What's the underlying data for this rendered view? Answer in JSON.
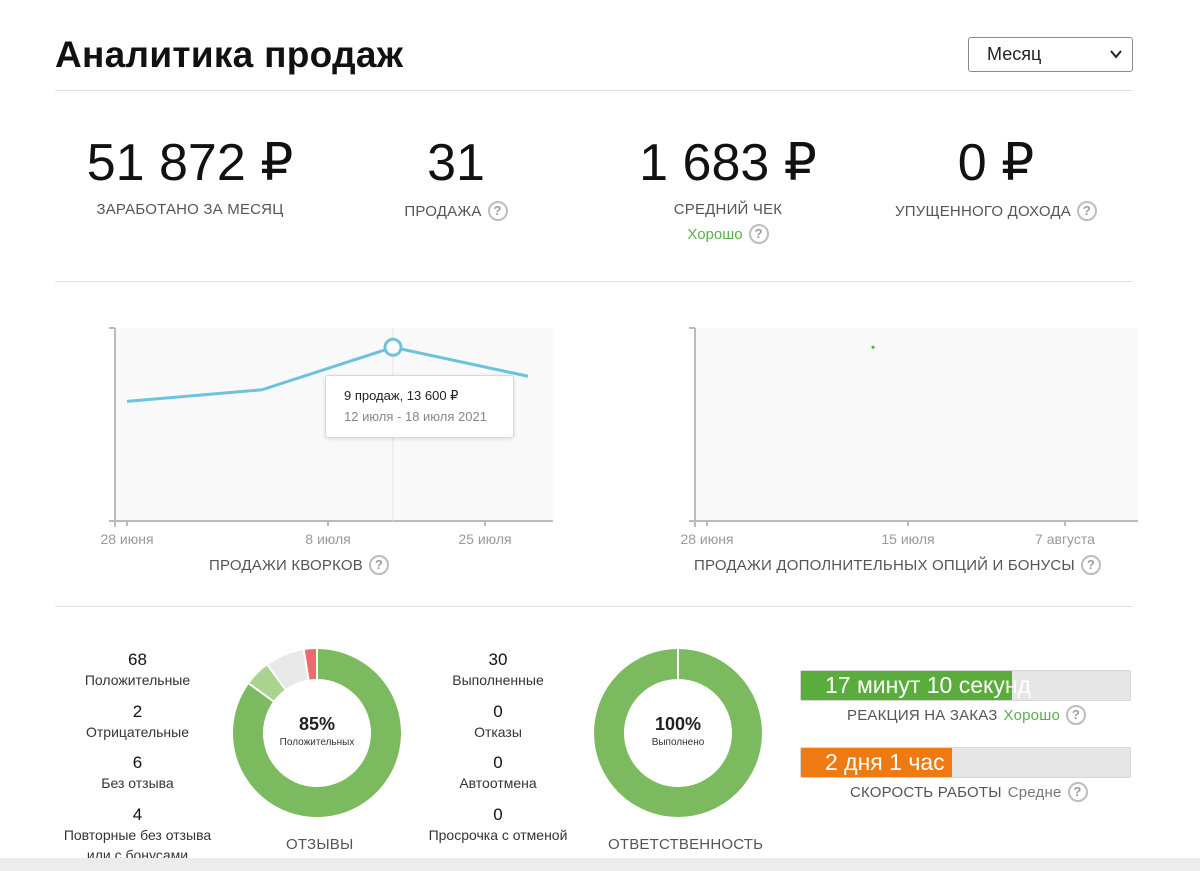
{
  "header": {
    "title": "Аналитика продаж",
    "period_value": "Месяц"
  },
  "stats": [
    {
      "value": "51 872 ₽",
      "label": "ЗАРАБОТАНО ЗА МЕСЯЦ"
    },
    {
      "value": "31",
      "label": "ПРОДАЖА"
    },
    {
      "value": "1 683 ₽",
      "label": "СРЕДНИЙ ЧЕК",
      "sublabel": "Хорошо"
    },
    {
      "value": "0 ₽",
      "label": "УПУЩЕННОГО ДОХОДА"
    }
  ],
  "chart_data": [
    {
      "type": "line",
      "title": "ПРОДАЖИ КВОРКОВ",
      "x_tick_labels": [
        "28 июня",
        "8 июля",
        "25 июля"
      ],
      "series": [
        {
          "color": "#6ec3dc",
          "points": [
            {
              "x": "28 июня – 4 июля",
              "y": 6.2
            },
            {
              "x": "5 июля – 11 июля",
              "y": 6.8
            },
            {
              "x": "12 июля – 18 июля 2021",
              "y": 9,
              "revenue": 13600
            },
            {
              "x": "19 июля – 25 июля",
              "y": 7.5
            }
          ]
        }
      ],
      "ylim": [
        0,
        10
      ],
      "tooltip": {
        "line1": "9 продаж, 13 600 ₽",
        "line2": "12 июля - 18 июля 2021"
      }
    },
    {
      "type": "scatter",
      "title": "ПРОДАЖИ ДОПОЛНИТЕЛЬНЫХ ОПЦИЙ И БОНУСЫ",
      "x_tick_labels": [
        "28 июня",
        "15 июля",
        "7 августа"
      ],
      "series": [
        {
          "color": "#58b04a",
          "points": [
            {
              "x": "14 июля",
              "y": 9
            }
          ]
        }
      ],
      "ylim": [
        0,
        10
      ]
    }
  ],
  "reviews": {
    "items": [
      {
        "count": "68",
        "label": "Положительные"
      },
      {
        "count": "2",
        "label": "Отрицательные"
      },
      {
        "count": "6",
        "label": "Без отзыва"
      },
      {
        "count": "4",
        "label": "Повторные без отзыва или с бонусами"
      }
    ],
    "donut_percent": "85%",
    "donut_caption": "Положительных",
    "section_label": "ОТЗЫВЫ",
    "segments": [
      {
        "value": 68,
        "color": "#7cba5f"
      },
      {
        "value": 4,
        "color": "#a9d38f"
      },
      {
        "value": 6,
        "color": "#e9e9e9"
      },
      {
        "value": 2,
        "color": "#ee6b6b"
      }
    ]
  },
  "orders": {
    "items": [
      {
        "count": "30",
        "label": "Выполненные"
      },
      {
        "count": "0",
        "label": "Отказы"
      },
      {
        "count": "0",
        "label": "Автоотмена"
      },
      {
        "count": "0",
        "label": "Просрочка с отменой"
      }
    ],
    "donut_percent": "100%",
    "donut_caption": "Выполнено",
    "section_label": "ОТВЕТСТВЕННОСТЬ",
    "segments": [
      {
        "value": 30,
        "color": "#7cba5f"
      }
    ]
  },
  "metrics": [
    {
      "bar_text": "17 минут 10 секунд",
      "fill_fraction": 0.64,
      "color": "#5aad3c",
      "label": "РЕАКЦИЯ НА ЗАКАЗ",
      "rating": "Хорошо",
      "rating_class": "good"
    },
    {
      "bar_text": "2 дня 1 час",
      "fill_fraction": 0.46,
      "color": "#ef7a11",
      "label": "СКОРОСТЬ РАБОТЫ",
      "rating": "Средне",
      "rating_class": "mid"
    }
  ]
}
